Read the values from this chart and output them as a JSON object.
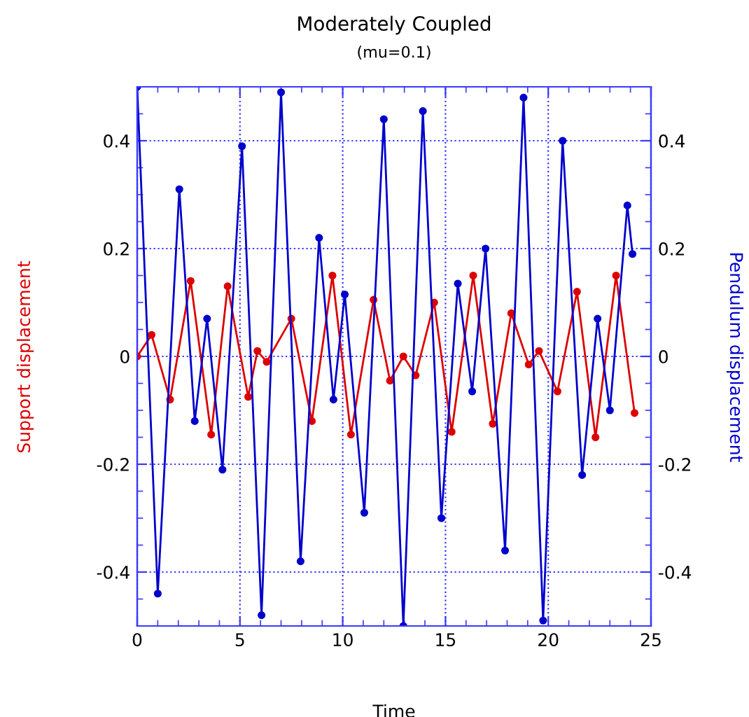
{
  "chart_data": {
    "type": "line",
    "title": "Moderately Coupled",
    "subtitle": "(mu=0.1)",
    "xlabel": "Time",
    "ylabel": "Support displacement",
    "y2label": "Pendulum displacement",
    "xlim": [
      0,
      25
    ],
    "xticks": [
      0,
      5,
      10,
      15,
      20,
      25
    ],
    "ylim": [
      -0.5,
      0.5
    ],
    "yticks": [
      -0.4,
      -0.2,
      0,
      0.2,
      0.4
    ],
    "y2lim": [
      -0.5,
      0.5
    ],
    "y2ticks": [
      -0.4,
      -0.2,
      0,
      0.2,
      0.4
    ],
    "grid": true,
    "marker": "circle",
    "line_style": "solid",
    "series": [
      {
        "color": "#dd0000",
        "x": [
          0,
          0.7,
          1.6,
          2.6,
          3.6,
          4.4,
          5.4,
          5.85,
          6.3,
          7.5,
          8.5,
          9.5,
          10.4,
          11.5,
          12.3,
          12.95,
          13.55,
          14.45,
          15.3,
          16.35,
          17.3,
          18.2,
          19.05,
          19.55,
          20.45,
          21.4,
          22.3,
          23.3,
          24.2
        ],
        "values": [
          0,
          0.04,
          -0.08,
          0.14,
          -0.145,
          0.13,
          -0.075,
          0.01,
          -0.01,
          0.07,
          -0.12,
          0.15,
          -0.145,
          0.105,
          -0.045,
          0.0,
          -0.035,
          0.1,
          -0.14,
          0.15,
          -0.125,
          0.08,
          -0.015,
          0.01,
          -0.065,
          0.12,
          -0.15,
          0.15,
          -0.105
        ]
      },
      {
        "color": "#0000cc",
        "axis": "y2",
        "x": [
          0,
          1.0,
          2.05,
          2.8,
          3.4,
          4.15,
          5.1,
          6.05,
          7.0,
          7.95,
          8.85,
          9.55,
          10.1,
          11.05,
          12.0,
          12.95,
          13.9,
          14.8,
          15.6,
          16.3,
          16.95,
          17.9,
          18.8,
          19.75,
          20.7,
          21.65,
          22.4,
          23.0,
          23.85,
          24.1
        ],
        "values": [
          0.5,
          -0.44,
          0.31,
          -0.12,
          0.07,
          -0.21,
          0.39,
          -0.48,
          0.49,
          -0.38,
          0.22,
          -0.08,
          0.115,
          -0.29,
          0.44,
          -0.5,
          0.455,
          -0.3,
          0.135,
          -0.065,
          0.2,
          -0.36,
          0.48,
          -0.49,
          0.4,
          -0.22,
          0.07,
          -0.1,
          0.28,
          0.19
        ]
      }
    ]
  }
}
